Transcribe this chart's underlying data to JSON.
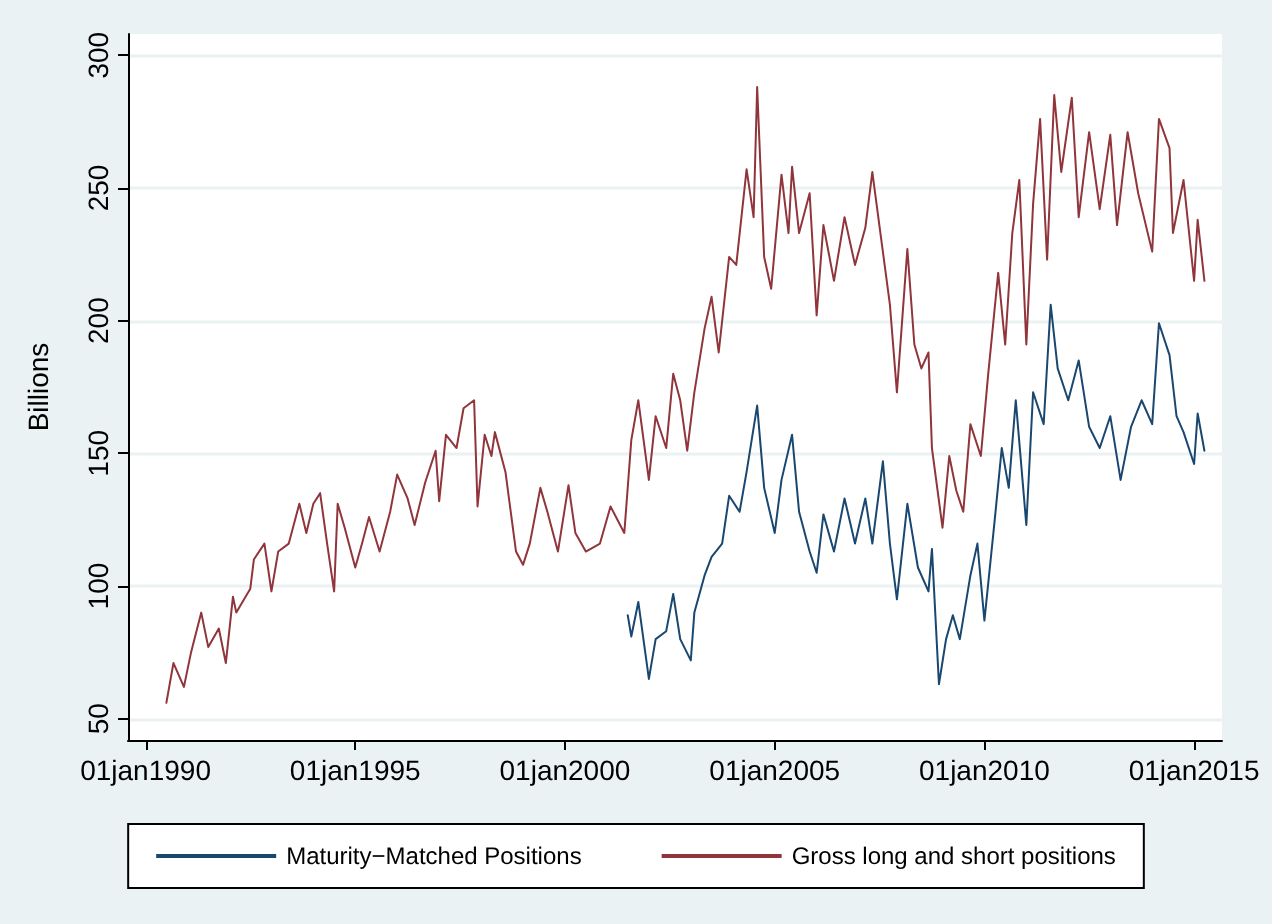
{
  "chart_data": {
    "type": "line",
    "ylabel": "Billions",
    "xlim": [
      "1989-08",
      "2015-09"
    ],
    "xticks": [
      {
        "value": "1990-01-01",
        "label": "01jan1990"
      },
      {
        "value": "1995-01-01",
        "label": "01jan1995"
      },
      {
        "value": "2000-01-01",
        "label": "01jan2000"
      },
      {
        "value": "2005-01-01",
        "label": "01jan2005"
      },
      {
        "value": "2010-01-01",
        "label": "01jan2010"
      },
      {
        "value": "2015-01-01",
        "label": "01jan2015"
      }
    ],
    "ylim": [
      42,
      308
    ],
    "yticks": [
      50,
      100,
      150,
      200,
      250,
      300
    ],
    "grid": "y",
    "legend": "bottom",
    "marker": "none",
    "line_style": "solid",
    "series": [
      {
        "name": "Maturity−Matched Positions",
        "color": "#1a476f",
        "x": [
          "2001-07",
          "2001-08",
          "2001-10",
          "2002-01",
          "2002-03",
          "2002-06",
          "2002-08",
          "2002-10",
          "2003-01",
          "2003-02",
          "2003-05",
          "2003-07",
          "2003-10",
          "2003-12",
          "2004-03",
          "2004-05",
          "2004-08",
          "2004-10",
          "2005-01",
          "2005-03",
          "2005-06",
          "2005-08",
          "2005-11",
          "2006-01",
          "2006-03",
          "2006-06",
          "2006-09",
          "2006-12",
          "2007-03",
          "2007-05",
          "2007-08",
          "2007-10",
          "2007-12",
          "2008-03",
          "2008-06",
          "2008-09",
          "2008-10",
          "2008-12",
          "2009-02",
          "2009-04",
          "2009-06",
          "2009-09",
          "2009-11",
          "2010-01",
          "2010-04",
          "2010-06",
          "2010-08",
          "2010-10",
          "2011-01",
          "2011-03",
          "2011-06",
          "2011-08",
          "2011-10",
          "2012-01",
          "2012-04",
          "2012-07",
          "2012-10",
          "2013-01",
          "2013-04",
          "2013-07",
          "2013-10",
          "2014-01",
          "2014-03",
          "2014-06",
          "2014-08",
          "2014-10",
          "2015-01",
          "2015-02",
          "2015-04"
        ],
        "values": [
          89,
          81,
          94,
          65,
          80,
          83,
          97,
          80,
          72,
          90,
          104,
          111,
          116,
          134,
          128,
          143,
          168,
          137,
          120,
          140,
          157,
          128,
          113,
          105,
          127,
          113,
          133,
          116,
          133,
          116,
          147,
          116,
          95,
          131,
          107,
          98,
          114,
          63,
          80,
          89,
          80,
          104,
          116,
          87,
          125,
          152,
          137,
          170,
          123,
          173,
          161,
          206,
          182,
          170,
          185,
          160,
          152,
          164,
          140,
          160,
          170,
          161,
          199,
          187,
          164,
          158,
          146,
          165,
          151
        ]
      },
      {
        "name": "Gross long and short positions",
        "color": "#90353b",
        "x": [
          "1990-07",
          "1990-09",
          "1990-12",
          "1991-02",
          "1991-05",
          "1991-07",
          "1991-10",
          "1991-12",
          "1992-02",
          "1992-03",
          "1992-07",
          "1992-08",
          "1992-11",
          "1993-01",
          "1993-03",
          "1993-06",
          "1993-09",
          "1993-11",
          "1994-01",
          "1994-03",
          "1994-05",
          "1994-07",
          "1994-08",
          "1994-10",
          "1995-01",
          "1995-03",
          "1995-05",
          "1995-08",
          "1995-11",
          "1996-01",
          "1996-04",
          "1996-06",
          "1996-09",
          "1996-12",
          "1997-01",
          "1997-03",
          "1997-06",
          "1997-08",
          "1997-11",
          "1997-12",
          "1998-02",
          "1998-04",
          "1998-05",
          "1998-08",
          "1998-11",
          "1999-01",
          "1999-03",
          "1999-06",
          "1999-08",
          "1999-11",
          "2000-02",
          "2000-04",
          "2000-07",
          "2000-11",
          "2001-02",
          "2001-06",
          "2001-08",
          "2001-10",
          "2002-01",
          "2002-03",
          "2002-06",
          "2002-08",
          "2002-10",
          "2002-12",
          "2003-02",
          "2003-05",
          "2003-07",
          "2003-09",
          "2003-12",
          "2004-02",
          "2004-05",
          "2004-07",
          "2004-08",
          "2004-10",
          "2004-12",
          "2005-03",
          "2005-05",
          "2005-06",
          "2005-08",
          "2005-11",
          "2006-01",
          "2006-03",
          "2006-06",
          "2006-09",
          "2006-12",
          "2007-03",
          "2007-05",
          "2007-07",
          "2007-10",
          "2007-12",
          "2008-03",
          "2008-05",
          "2008-07",
          "2008-09",
          "2008-10",
          "2009-01",
          "2009-03",
          "2009-05",
          "2009-07",
          "2009-09",
          "2009-12",
          "2010-02",
          "2010-05",
          "2010-07",
          "2010-09",
          "2010-11",
          "2011-01",
          "2011-03",
          "2011-05",
          "2011-07",
          "2011-09",
          "2011-11",
          "2012-02",
          "2012-04",
          "2012-07",
          "2012-10",
          "2013-01",
          "2013-03",
          "2013-06",
          "2013-09",
          "2014-01",
          "2014-03",
          "2014-06",
          "2014-07",
          "2014-10",
          "2015-01",
          "2015-02",
          "2015-04"
        ],
        "values": [
          56,
          71,
          62,
          75,
          90,
          77,
          84,
          71,
          96,
          90,
          99,
          110,
          116,
          98,
          113,
          116,
          131,
          120,
          131,
          135,
          116,
          98,
          131,
          122,
          107,
          116,
          126,
          113,
          128,
          142,
          133,
          123,
          139,
          151,
          132,
          157,
          152,
          167,
          170,
          130,
          157,
          149,
          158,
          143,
          113,
          108,
          116,
          137,
          128,
          113,
          138,
          120,
          113,
          116,
          130,
          120,
          155,
          170,
          140,
          164,
          152,
          180,
          170,
          151,
          173,
          197,
          209,
          188,
          224,
          221,
          257,
          239,
          288,
          224,
          212,
          255,
          233,
          258,
          233,
          248,
          202,
          236,
          215,
          239,
          221,
          235,
          256,
          236,
          206,
          173,
          227,
          191,
          182,
          188,
          152,
          122,
          149,
          136,
          128,
          161,
          149,
          179,
          218,
          191,
          233,
          253,
          191,
          244,
          276,
          223,
          285,
          256,
          284,
          239,
          271,
          242,
          270,
          236,
          271,
          248,
          226,
          276,
          265,
          233,
          253,
          215,
          238,
          215
        ]
      }
    ]
  }
}
